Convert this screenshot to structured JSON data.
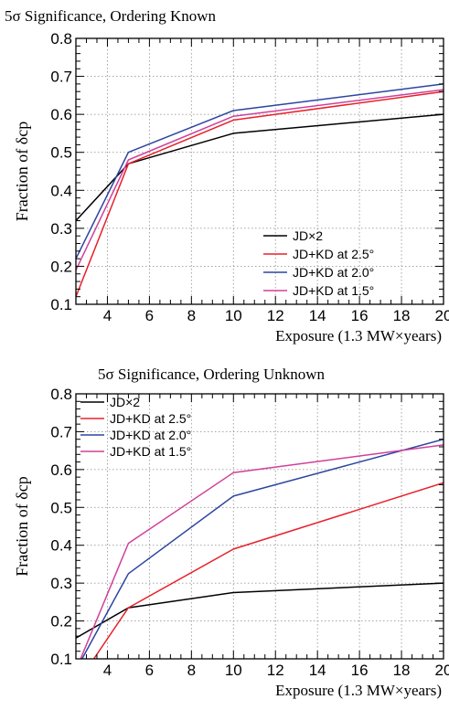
{
  "chart_data": [
    {
      "type": "line",
      "title": "5σ Significance, Ordering Known",
      "xlabel": "Exposure (1.3 MW×years)",
      "ylabel": "Fraction of δcp",
      "xlim": [
        2.5,
        20
      ],
      "ylim": [
        0.1,
        0.8
      ],
      "x_ticks": [
        4,
        6,
        8,
        10,
        12,
        14,
        16,
        18,
        20
      ],
      "x_tick_labels": [
        "4",
        "6",
        "8",
        "10",
        "12",
        "14",
        "16",
        "18",
        "20"
      ],
      "y_ticks": [
        0.1,
        0.2,
        0.3,
        0.4,
        0.5,
        0.6,
        0.7,
        0.8
      ],
      "y_tick_labels": [
        "0.1",
        "0.2",
        "0.3",
        "0.4",
        "0.5",
        "0.6",
        "0.7",
        "0.8"
      ],
      "grid": true,
      "legend_position": "bottom-right",
      "x": [
        2.5,
        5,
        10,
        20
      ],
      "series": [
        {
          "name": "JD×2",
          "color": "#000000",
          "values": [
            0.32,
            0.47,
            0.55,
            0.6
          ]
        },
        {
          "name": "JD+KD at 2.5°",
          "color": "#e8202a",
          "values": [
            0.12,
            0.47,
            0.585,
            0.66
          ]
        },
        {
          "name": "JD+KD at 2.0°",
          "color": "#2b45a0",
          "values": [
            0.22,
            0.5,
            0.61,
            0.68
          ]
        },
        {
          "name": "JD+KD at 1.5°",
          "color": "#d0409a",
          "values": [
            0.19,
            0.48,
            0.595,
            0.665
          ]
        }
      ]
    },
    {
      "type": "line",
      "title": "5σ Significance, Ordering Unknown",
      "xlabel": "Exposure (1.3 MW×years)",
      "ylabel": "Fraction of δcp",
      "xlim": [
        2.5,
        20
      ],
      "ylim": [
        0.1,
        0.8
      ],
      "x_ticks": [
        4,
        6,
        8,
        10,
        12,
        14,
        16,
        18,
        20
      ],
      "x_tick_labels": [
        "4",
        "6",
        "8",
        "10",
        "12",
        "14",
        "16",
        "18",
        "20"
      ],
      "y_ticks": [
        0.1,
        0.2,
        0.3,
        0.4,
        0.5,
        0.6,
        0.7,
        0.8
      ],
      "y_tick_labels": [
        "0.1",
        "0.2",
        "0.3",
        "0.4",
        "0.5",
        "0.6",
        "0.7",
        "0.8"
      ],
      "grid": true,
      "legend_position": "top-left",
      "x": [
        2.5,
        5,
        10,
        20
      ],
      "series": [
        {
          "name": "JD×2",
          "color": "#000000",
          "values": [
            0.155,
            0.235,
            0.275,
            0.3
          ]
        },
        {
          "name": "JD+KD at 2.5°",
          "color": "#e8202a",
          "values": [
            0.03,
            0.235,
            0.39,
            0.565
          ]
        },
        {
          "name": "JD+KD at 2.0°",
          "color": "#2b45a0",
          "values": [
            0.07,
            0.325,
            0.53,
            0.68
          ]
        },
        {
          "name": "JD+KD at 1.5°",
          "color": "#d0409a",
          "values": [
            0.07,
            0.405,
            0.592,
            0.665
          ]
        }
      ]
    }
  ]
}
